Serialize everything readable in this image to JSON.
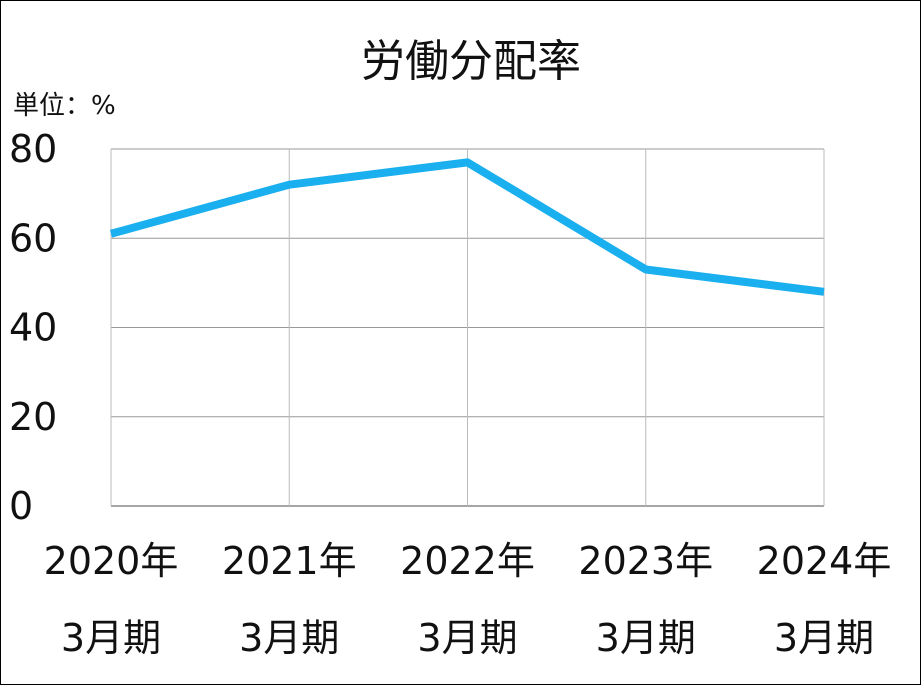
{
  "chart_data": {
    "type": "line",
    "title": "労働分配率",
    "unit_label": "単位：%",
    "categories": [
      [
        "2020年",
        "3月期"
      ],
      [
        "2021年",
        "3月期"
      ],
      [
        "2022年",
        "3月期"
      ],
      [
        "2023年",
        "3月期"
      ],
      [
        "2024年",
        "3月期"
      ]
    ],
    "series": [
      {
        "values": [
          61,
          72,
          77,
          53,
          48
        ],
        "color": "#1AAFEF"
      }
    ],
    "ylim": [
      0,
      80
    ],
    "yticks": [
      0,
      20,
      40,
      60,
      80
    ],
    "grid": true,
    "legend": "none"
  }
}
